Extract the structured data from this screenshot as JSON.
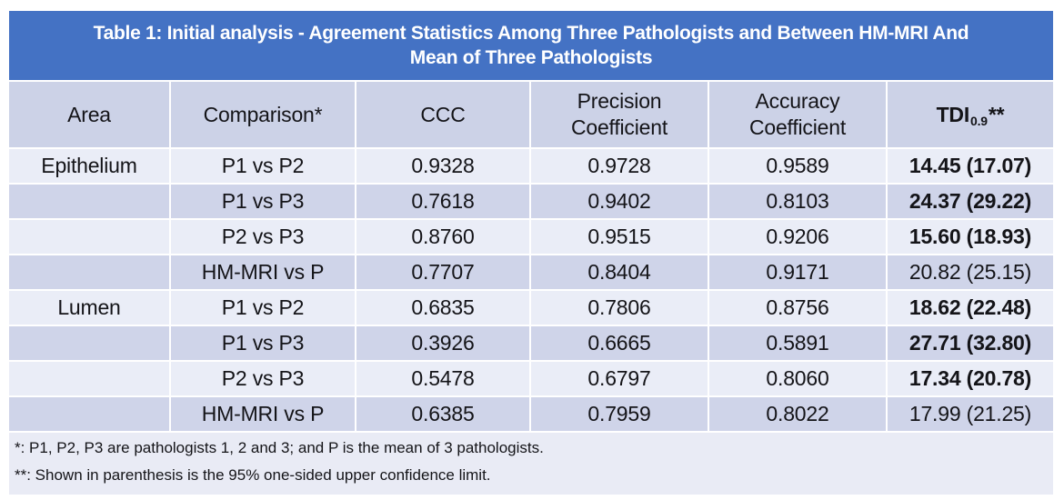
{
  "colors": {
    "title_bg": "#4472C4",
    "title_text": "#FFFFFF",
    "header_row_bg": "#CCD2E7",
    "row_light_bg": "#EAEDF7",
    "row_dark_bg": "#CFD4E9",
    "footnote_bg": "#E9EBF5",
    "body_text": "#141418"
  },
  "table": {
    "title": "Table 1: Initial analysis - Agreement Statistics Among Three Pathologists and Between HM-MRI And Mean of Three Pathologists",
    "title_line1": "Table 1: Initial analysis - Agreement Statistics Among Three Pathologists and Between HM-MRI And",
    "title_line2": "Mean of Three Pathologists",
    "headers": {
      "area": "Area",
      "comparison": "Comparison*",
      "ccc": "CCC",
      "precision_line1": "Precision",
      "precision_line2": "Coefficient",
      "accuracy_line1": "Accuracy",
      "accuracy_line2": "Coefficient",
      "tdi_base": "TDI",
      "tdi_sub": "0.9",
      "tdi_suffix": "**"
    },
    "rows": [
      {
        "area": "Epithelium",
        "comparison": "P1 vs P2",
        "ccc": "0.9328",
        "precision": "0.9728",
        "accuracy": "0.9589",
        "tdi": "14.45 (17.07)",
        "tdi_bold": true
      },
      {
        "area": "",
        "comparison": "P1 vs P3",
        "ccc": "0.7618",
        "precision": "0.9402",
        "accuracy": "0.8103",
        "tdi": "24.37 (29.22)",
        "tdi_bold": true
      },
      {
        "area": "",
        "comparison": "P2 vs P3",
        "ccc": "0.8760",
        "precision": "0.9515",
        "accuracy": "0.9206",
        "tdi": "15.60 (18.93)",
        "tdi_bold": true
      },
      {
        "area": "",
        "comparison": "HM-MRI vs P",
        "ccc": "0.7707",
        "precision": "0.8404",
        "accuracy": "0.9171",
        "tdi": "20.82 (25.15)",
        "tdi_bold": false
      },
      {
        "area": "Lumen",
        "comparison": "P1 vs P2",
        "ccc": "0.6835",
        "precision": "0.7806",
        "accuracy": "0.8756",
        "tdi": "18.62 (22.48)",
        "tdi_bold": true
      },
      {
        "area": "",
        "comparison": "P1 vs P3",
        "ccc": "0.3926",
        "precision": "0.6665",
        "accuracy": "0.5891",
        "tdi": "27.71 (32.80)",
        "tdi_bold": true
      },
      {
        "area": "",
        "comparison": "P2 vs P3",
        "ccc": "0.5478",
        "precision": "0.6797",
        "accuracy": "0.8060",
        "tdi": "17.34 (20.78)",
        "tdi_bold": true
      },
      {
        "area": "",
        "comparison": "HM-MRI vs P",
        "ccc": "0.6385",
        "precision": "0.7959",
        "accuracy": "0.8022",
        "tdi": "17.99 (21.25)",
        "tdi_bold": false
      }
    ],
    "footnotes": [
      "*: P1, P2, P3 are pathologists 1, 2 and 3; and P is the mean of 3 pathologists.",
      "**: Shown in parenthesis is the 95% one-sided upper confidence limit."
    ]
  }
}
